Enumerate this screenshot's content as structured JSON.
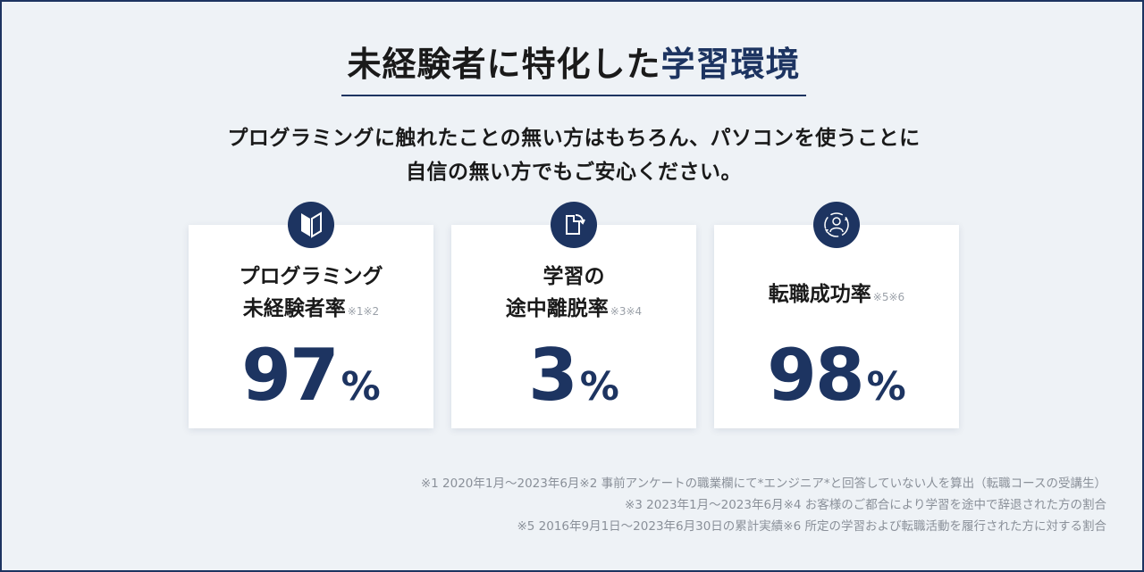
{
  "heading": {
    "main": "未経験者に特化した",
    "accent": "学習環境"
  },
  "lead": {
    "line1": "プログラミングに触れたことの無い方はもちろん、パソコンを使うことに",
    "line2": "自信の無い方でもご安心ください。"
  },
  "cards": [
    {
      "icon": "beginner-mark-icon",
      "label_line1": "プログラミング",
      "label_line2": "未経験者率",
      "note": "※1※2",
      "value": "97",
      "unit": "%"
    },
    {
      "icon": "document-arrow-icon",
      "label_line1": "学習の",
      "label_line2": "途中離脱率",
      "note": "※3※4",
      "value": "3",
      "unit": "%"
    },
    {
      "icon": "person-cycle-icon",
      "label_line1": "転職成功率",
      "note": "※5※6",
      "value": "98",
      "unit": "%"
    }
  ],
  "footnotes": [
    "※1 2020年1月〜2023年6月※2 事前アンケートの職業欄にて*エンジニア*と回答していない人を算出（転職コースの受講生）",
    "※3 2023年1月〜2023年6月※4 お客様のご都合により学習を途中で辞退された方の割合",
    "※5 2016年9月1日〜2023年6月30日の累計実績※6 所定の学習および転職活動を履行された方に対する割合"
  ],
  "colors": {
    "accent": "#1d3461",
    "background": "#eef2f6",
    "card": "#ffffff",
    "footnote": "#8a9099"
  }
}
